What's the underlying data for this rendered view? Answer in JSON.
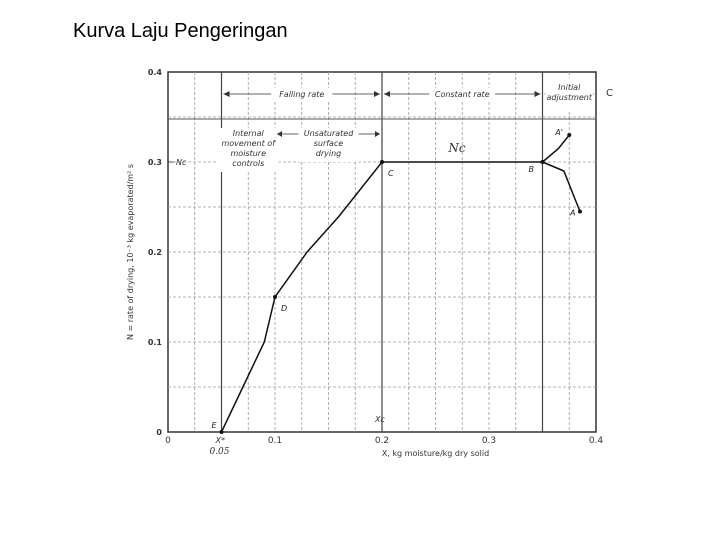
{
  "slide_title": "Kurva Laju Pengeringan",
  "chart_data": {
    "type": "line",
    "xlabel": "X, kg moisture/kg dry solid",
    "ylabel": "N = rate of drying, 10⁻³ kg evaporated/m² s",
    "xlim": [
      0,
      0.4
    ],
    "ylim": [
      0,
      0.4
    ],
    "x_ticks": [
      "0",
      "0.1",
      "0.2",
      "0.3",
      "0.4"
    ],
    "y_ticks": [
      "0",
      "0.1",
      "0.2",
      "0.3",
      "0.4"
    ],
    "grid": true,
    "regions": [
      {
        "label": "Falling rate",
        "x_range": [
          0.05,
          0.2
        ]
      },
      {
        "label": "Constant rate",
        "x_range": [
          0.2,
          0.35
        ]
      },
      {
        "label": "Initial adjustment",
        "x_range": [
          0.35,
          0.4
        ]
      }
    ],
    "sub_regions": [
      {
        "label": "Internal movement of moisture controls",
        "x_range": [
          0.05,
          0.1
        ]
      },
      {
        "label": "Unsaturated surface drying",
        "x_range": [
          0.1,
          0.2
        ]
      }
    ],
    "series": [
      {
        "points": [
          {
            "x": 0.05,
            "y": 0.0,
            "label": "E"
          },
          {
            "x": 0.07,
            "y": 0.05
          },
          {
            "x": 0.09,
            "y": 0.1
          },
          {
            "x": 0.1,
            "y": 0.15,
            "label": "D"
          },
          {
            "x": 0.13,
            "y": 0.2
          },
          {
            "x": 0.16,
            "y": 0.24
          },
          {
            "x": 0.2,
            "y": 0.3,
            "label": "C"
          },
          {
            "x": 0.35,
            "y": 0.3,
            "label": "B"
          }
        ]
      },
      {
        "points": [
          {
            "x": 0.35,
            "y": 0.3
          },
          {
            "x": 0.365,
            "y": 0.315
          },
          {
            "x": 0.375,
            "y": 0.33,
            "label": "A'"
          }
        ]
      },
      {
        "points": [
          {
            "x": 0.35,
            "y": 0.3
          },
          {
            "x": 0.37,
            "y": 0.29
          },
          {
            "x": 0.38,
            "y": 0.26
          },
          {
            "x": 0.385,
            "y": 0.245,
            "label": "A"
          }
        ]
      }
    ],
    "annotations": {
      "rate_c_label": "Nc",
      "constant_rate_label": "Nc",
      "critical_x_label": "Xc",
      "equilibrium_x_label": "X*",
      "equilibrium_x_value": "0.05",
      "corner_label": "C"
    }
  }
}
